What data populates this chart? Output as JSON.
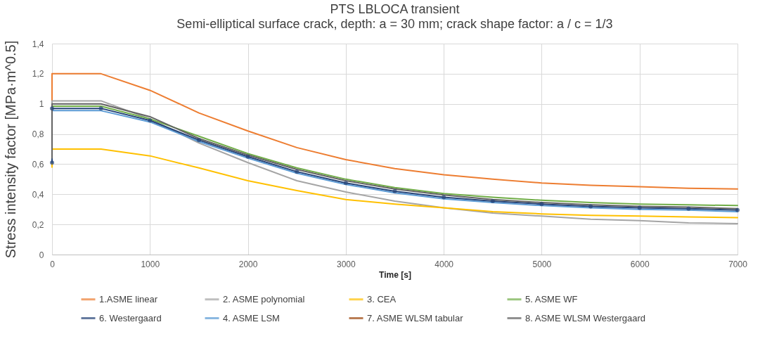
{
  "chart_data": {
    "type": "line",
    "title": "PTS LBLOCA transient",
    "subtitle": "Semi-elliptical surface crack, depth: a = 30 mm; crack shape factor: a / c = 1/3",
    "xlabel": "Time [s]",
    "ylabel": "Stress intensity factor [MPa·m^0.5]",
    "x": [
      0,
      0,
      500,
      1000,
      1500,
      2000,
      2500,
      3000,
      3500,
      4000,
      4500,
      5000,
      5500,
      6000,
      6500,
      7000
    ],
    "series": [
      {
        "name": "1.ASME linear",
        "color": "#ed7d31",
        "values": [
          1.0,
          1.2,
          1.2,
          1.09,
          0.94,
          0.82,
          0.71,
          0.63,
          0.57,
          0.53,
          0.5,
          0.475,
          0.46,
          0.45,
          0.44,
          0.435
        ]
      },
      {
        "name": "2. ASME polynomial",
        "color": "#a5a5a5",
        "values": [
          0.6,
          1.02,
          1.02,
          0.9,
          0.74,
          0.61,
          0.49,
          0.415,
          0.355,
          0.31,
          0.275,
          0.255,
          0.235,
          0.225,
          0.21,
          0.205
        ]
      },
      {
        "name": "3. CEA",
        "color": "#ffc000",
        "values": [
          0.58,
          0.7,
          0.7,
          0.655,
          0.575,
          0.49,
          0.425,
          0.365,
          0.335,
          0.31,
          0.285,
          0.27,
          0.26,
          0.255,
          0.25,
          0.245
        ]
      },
      {
        "name": "5. ASME WF",
        "color": "#70ad47",
        "values": [
          null,
          0.985,
          0.985,
          0.9,
          0.785,
          0.67,
          0.575,
          0.5,
          0.445,
          0.405,
          0.38,
          0.36,
          0.345,
          0.335,
          0.33,
          0.325
        ]
      },
      {
        "name": "6. Westergaard",
        "color": "#264478",
        "marker": "circle",
        "values": [
          0.61,
          0.97,
          0.97,
          0.89,
          0.76,
          0.65,
          0.55,
          0.475,
          0.42,
          0.38,
          0.355,
          0.335,
          0.32,
          0.31,
          0.305,
          0.295
        ]
      },
      {
        "name": "4. ASME LSM",
        "color": "#5b9bd5",
        "values": [
          null,
          0.955,
          0.955,
          0.88,
          0.75,
          0.64,
          0.54,
          0.465,
          0.41,
          0.37,
          0.345,
          0.325,
          0.31,
          0.3,
          0.295,
          0.285
        ]
      },
      {
        "name": "7. ASME WLSM tabular",
        "color": "#9e480e",
        "values": [
          null,
          null,
          null,
          null,
          null,
          null,
          null,
          null,
          null,
          null,
          null,
          null,
          null,
          null,
          null,
          null
        ]
      },
      {
        "name": "8. ASME WLSM Westergaard",
        "color": "#636363",
        "values": [
          0.64,
          1.0,
          1.0,
          0.915,
          0.77,
          0.66,
          0.565,
          0.49,
          0.435,
          0.395,
          0.365,
          0.345,
          0.33,
          0.32,
          0.315,
          0.305
        ]
      }
    ],
    "xlim": [
      0,
      7000
    ],
    "xticks": [
      0,
      1000,
      2000,
      3000,
      4000,
      5000,
      6000,
      7000
    ],
    "ylim": [
      0,
      1.4
    ],
    "yticks": [
      0,
      {
        "value": 0.2,
        "label": "0,2"
      },
      {
        "value": 0.4,
        "label": "0,4"
      },
      {
        "value": 0.6,
        "label": "0,6"
      },
      {
        "value": 0.8,
        "label": "0,8"
      },
      1,
      {
        "value": 1.2,
        "label": "1,2"
      },
      {
        "value": 1.4,
        "label": "1,4"
      }
    ],
    "grid": true,
    "legend": "bottom",
    "line_style": "solid"
  }
}
